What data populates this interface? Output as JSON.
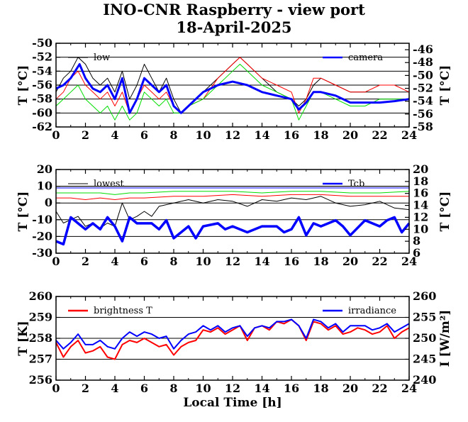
{
  "title": "INO-CNR Raspberry - view port",
  "subtitle": "18-April-2025",
  "chart_data": [
    {
      "type": "line",
      "ylabel": "T [°C]",
      "y2label": "T [°C]",
      "xlim": [
        0,
        24
      ],
      "ylim": [
        -62,
        -50
      ],
      "y2lim": [
        -58,
        -45
      ],
      "xticks": [
        "0",
        "2",
        "4",
        "6",
        "8",
        "10",
        "12",
        "14",
        "16",
        "18",
        "20",
        "22",
        "24"
      ],
      "yticks": [
        "-50",
        "-52",
        "-54",
        "-56",
        "-58",
        "-60",
        "-62"
      ],
      "y2ticks": [
        "-46",
        "-48",
        "-50",
        "-52",
        "-54",
        "-56",
        "-58"
      ],
      "grid": true,
      "legend": [
        {
          "name": "low",
          "position": "top-left"
        },
        {
          "name": "camera",
          "position": "top-right"
        }
      ],
      "series": [
        {
          "name": "low",
          "color": "#000000",
          "axis": "left",
          "x": [
            0,
            0.5,
            1,
            1.5,
            2,
            2.5,
            3,
            3.5,
            4,
            4.5,
            5,
            5.5,
            6,
            6.5,
            7,
            7.5,
            8,
            8.5,
            9,
            10,
            11,
            12,
            12.5,
            13,
            14,
            15,
            16,
            16.5,
            17,
            17.5,
            18,
            19,
            20,
            21,
            22,
            23,
            24
          ],
          "y": [
            -57,
            -55,
            -54,
            -52,
            -53,
            -55,
            -56,
            -55,
            -57,
            -54,
            -58,
            -56,
            -53,
            -55,
            -57,
            -55,
            -58,
            -60,
            -59,
            -57,
            -55,
            -53,
            -52,
            -53,
            -55,
            -57,
            -58,
            -59,
            -58,
            -56,
            -55,
            -56,
            -57,
            -57,
            -57,
            -57,
            -57
          ]
        },
        {
          "name": "",
          "color": "#ff0000",
          "axis": "left",
          "x": [
            0,
            0.5,
            1,
            1.5,
            2,
            2.5,
            3,
            3.5,
            4,
            4.5,
            5,
            5.5,
            6,
            6.5,
            7,
            7.5,
            8,
            8.5,
            9,
            10,
            11,
            12,
            12.5,
            13,
            14,
            15,
            16,
            16.5,
            17,
            17.5,
            18,
            19,
            20,
            21,
            22,
            23,
            24
          ],
          "y": [
            -58,
            -57,
            -55,
            -54,
            -56,
            -57,
            -58,
            -57,
            -59,
            -57,
            -60,
            -58,
            -56,
            -57,
            -58,
            -57,
            -59,
            -60,
            -59,
            -58,
            -55,
            -53,
            -52,
            -53,
            -55,
            -56,
            -57,
            -60,
            -58,
            -55,
            -55,
            -56,
            -57,
            -57,
            -56,
            -56,
            -57
          ]
        },
        {
          "name": "",
          "color": "#00dd00",
          "axis": "left",
          "x": [
            0,
            0.5,
            1,
            1.5,
            2,
            2.5,
            3,
            3.5,
            4,
            4.5,
            5,
            5.5,
            6,
            6.5,
            7,
            7.5,
            8,
            8.5,
            9,
            10,
            11,
            12,
            12.5,
            13,
            14,
            15,
            16,
            16.5,
            17,
            17.5,
            18,
            19,
            20,
            21,
            22,
            23,
            24
          ],
          "y": [
            -59,
            -58,
            -57,
            -56,
            -58,
            -59,
            -60,
            -59,
            -61,
            -59,
            -61,
            -60,
            -57,
            -58,
            -59,
            -58,
            -60,
            -60,
            -59,
            -58,
            -56,
            -54,
            -53,
            -54,
            -56,
            -57,
            -58,
            -61,
            -59,
            -57,
            -57,
            -58,
            -59,
            -59,
            -58,
            -58,
            -58
          ]
        },
        {
          "name": "camera",
          "color": "#0000ff",
          "axis": "left",
          "x": [
            0,
            0.5,
            1,
            1.3,
            1.6,
            2,
            2.5,
            3,
            3.5,
            4,
            4.5,
            5,
            5.5,
            6,
            6.5,
            7,
            7.5,
            8,
            8.5,
            9,
            10,
            11,
            12,
            13,
            14,
            15,
            16,
            16.5,
            17,
            17.5,
            18,
            19,
            20,
            21,
            22,
            23,
            24
          ],
          "y": [
            -56.5,
            -56,
            -55,
            -54,
            -53,
            -55,
            -56.5,
            -57,
            -56,
            -58,
            -55,
            -60,
            -58,
            -55,
            -56,
            -57,
            -56,
            -59,
            -60,
            -59,
            -57,
            -56,
            -55.5,
            -56,
            -57,
            -57.5,
            -58,
            -59.5,
            -58.5,
            -57,
            -57,
            -57.5,
            -58.5,
            -58.5,
            -58.5,
            -58.3,
            -58
          ]
        }
      ]
    },
    {
      "type": "line",
      "ylabel": "T [°C]",
      "y2label": "T [°C]",
      "xlim": [
        0,
        24
      ],
      "ylim": [
        -30,
        20
      ],
      "y2lim": [
        6,
        20
      ],
      "xticks": [
        "0",
        "2",
        "4",
        "6",
        "8",
        "10",
        "12",
        "14",
        "16",
        "18",
        "20",
        "22",
        "24"
      ],
      "yticks": [
        "20",
        "10",
        "0",
        "-10",
        "-20",
        "-30"
      ],
      "y2ticks": [
        "20",
        "18",
        "16",
        "14",
        "12",
        "10",
        "8",
        "6"
      ],
      "grid": true,
      "legend": [
        {
          "name": "lowest",
          "position": "top-left"
        },
        {
          "name": "Tcb",
          "position": "top-right"
        }
      ],
      "series": [
        {
          "name": "lowest",
          "color": "#000000",
          "axis": "left",
          "x": [
            0,
            0.5,
            1,
            1.5,
            2,
            2.5,
            3,
            3.5,
            4,
            4.5,
            5,
            5.5,
            6,
            6.5,
            7,
            8,
            9,
            10,
            11,
            12,
            13,
            14,
            15,
            16,
            17,
            18,
            19,
            20,
            21,
            22,
            23,
            24
          ],
          "y": [
            -5,
            -12,
            -10,
            -8,
            -14,
            -12,
            -15,
            -12,
            -14,
            0,
            -10,
            -8,
            -5,
            -8,
            -2,
            0,
            2,
            0,
            2,
            1,
            -2,
            2,
            1,
            3,
            2,
            4,
            0,
            -2,
            -1,
            1,
            -3,
            -4
          ]
        },
        {
          "name": "",
          "color": "#ff0000",
          "axis": "left",
          "x": [
            0,
            1,
            2,
            3,
            4,
            5,
            6,
            8,
            10,
            12,
            14,
            16,
            18,
            20,
            22,
            24
          ],
          "y": [
            3,
            3,
            2,
            3,
            2,
            3,
            3,
            4,
            4,
            5,
            4,
            5,
            5,
            4,
            4,
            4
          ]
        },
        {
          "name": "",
          "color": "#00dd00",
          "axis": "left",
          "x": [
            0,
            1,
            2,
            3,
            4,
            5,
            6,
            8,
            10,
            12,
            14,
            16,
            18,
            20,
            22,
            24
          ],
          "y": [
            6,
            6,
            6,
            6,
            5,
            6,
            6,
            7,
            7,
            7,
            6,
            7,
            7,
            6,
            6,
            7
          ]
        },
        {
          "name": "",
          "color": "#0000ff",
          "axis": "left",
          "x": [
            0,
            1,
            2,
            3,
            4,
            5,
            6,
            8,
            10,
            12,
            14,
            16,
            18,
            20,
            22,
            24
          ],
          "y": [
            9,
            9,
            9,
            9,
            9,
            9,
            9,
            9,
            9,
            9,
            9,
            9,
            9,
            9,
            9,
            9
          ]
        },
        {
          "name": "",
          "color": "#000000",
          "axis": "left",
          "x": [
            0,
            2,
            4,
            6,
            8,
            10,
            12,
            14,
            16,
            18,
            20,
            22,
            24
          ],
          "y": [
            10,
            10,
            10,
            10,
            10,
            10,
            10,
            10,
            10,
            10,
            10,
            10,
            10
          ]
        },
        {
          "name": "Tcb",
          "color": "#0000ff",
          "axis": "right",
          "x": [
            0,
            0.5,
            1,
            1.5,
            2,
            2.5,
            3,
            3.5,
            4,
            4.5,
            5,
            5.5,
            6,
            6.5,
            7,
            7.5,
            8,
            8.5,
            9,
            9.5,
            10,
            11,
            11.5,
            12,
            13,
            14,
            15,
            15.5,
            16,
            16.5,
            17,
            17.5,
            18,
            19,
            19.5,
            20,
            21,
            22,
            22.5,
            23,
            23.5,
            24
          ],
          "y": [
            8,
            7.5,
            12,
            11,
            10,
            11,
            10,
            12,
            10.5,
            8,
            12,
            11,
            11,
            11,
            10,
            11.5,
            8.5,
            9.5,
            10.5,
            8.5,
            10.5,
            11,
            10,
            10.5,
            9.5,
            10.5,
            10.5,
            9.5,
            10,
            12,
            9,
            11,
            10.5,
            11.5,
            10.5,
            9,
            11.5,
            10.5,
            11.5,
            12,
            9.5,
            11
          ]
        }
      ]
    },
    {
      "type": "line",
      "ylabel": "T [K]",
      "y2label": "I [W/m²]",
      "xlabel": "Local Time [h]",
      "xlim": [
        0,
        24
      ],
      "ylim": [
        256,
        260
      ],
      "y2lim": [
        240,
        260
      ],
      "xticks": [
        "0",
        "2",
        "4",
        "6",
        "8",
        "10",
        "12",
        "14",
        "16",
        "18",
        "20",
        "22",
        "24"
      ],
      "yticks": [
        "260",
        "259",
        "258",
        "257",
        "256"
      ],
      "y2ticks": [
        "260",
        "255",
        "250",
        "245",
        "240"
      ],
      "grid": true,
      "legend": [
        {
          "name": "brightness T",
          "position": "top-left"
        },
        {
          "name": "irradiance",
          "position": "top-right"
        }
      ],
      "series": [
        {
          "name": "brightness T",
          "color": "#ff0000",
          "axis": "left",
          "x": [
            0,
            0.5,
            1,
            1.5,
            2,
            2.5,
            3,
            3.5,
            4,
            4.5,
            5,
            5.5,
            6,
            6.5,
            7,
            7.5,
            8,
            8.5,
            9,
            9.5,
            10,
            10.5,
            11,
            11.5,
            12,
            12.5,
            13,
            13.5,
            14,
            14.5,
            15,
            15.5,
            16,
            16.5,
            17,
            17.5,
            18,
            18.5,
            19,
            19.5,
            20,
            20.5,
            21,
            21.5,
            22,
            22.5,
            23,
            23.5,
            24
          ],
          "y": [
            257.8,
            257.1,
            257.6,
            257.9,
            257.3,
            257.4,
            257.6,
            257.1,
            257.0,
            257.7,
            257.9,
            257.8,
            258.0,
            257.8,
            257.6,
            257.7,
            257.2,
            257.6,
            257.8,
            257.9,
            258.4,
            258.3,
            258.5,
            258.2,
            258.4,
            258.6,
            257.9,
            258.5,
            258.6,
            258.4,
            258.8,
            258.7,
            258.9,
            258.6,
            257.9,
            258.8,
            258.7,
            258.4,
            258.6,
            258.2,
            258.3,
            258.5,
            258.4,
            258.2,
            258.3,
            258.6,
            258.0,
            258.3,
            258.5
          ]
        },
        {
          "name": "irradiance",
          "color": "#0000ff",
          "axis": "right",
          "x": [
            0,
            0.5,
            1,
            1.5,
            2,
            2.5,
            3,
            3.5,
            4,
            4.5,
            5,
            5.5,
            6,
            6.5,
            7,
            7.5,
            8,
            8.5,
            9,
            9.5,
            10,
            10.5,
            11,
            11.5,
            12,
            12.5,
            13,
            13.5,
            14,
            14.5,
            15,
            15.5,
            16,
            16.5,
            17,
            17.5,
            18,
            18.5,
            19,
            19.5,
            20,
            20.5,
            21,
            21.5,
            22,
            22.5,
            23,
            23.5,
            24
          ],
          "y": [
            249.5,
            247.5,
            249,
            251,
            248.5,
            248.5,
            249.5,
            248,
            247.5,
            250,
            251.5,
            250.5,
            251.5,
            251,
            250,
            250.5,
            247.5,
            249.5,
            251,
            251.5,
            253,
            252,
            253,
            251.5,
            252.5,
            253,
            250.5,
            252.5,
            253,
            252.5,
            254,
            254,
            254.5,
            253,
            250,
            254.5,
            254,
            252.5,
            253.5,
            251.5,
            253,
            253,
            253,
            252,
            252.5,
            253.5,
            251.5,
            252.5,
            253.5
          ]
        }
      ]
    }
  ]
}
